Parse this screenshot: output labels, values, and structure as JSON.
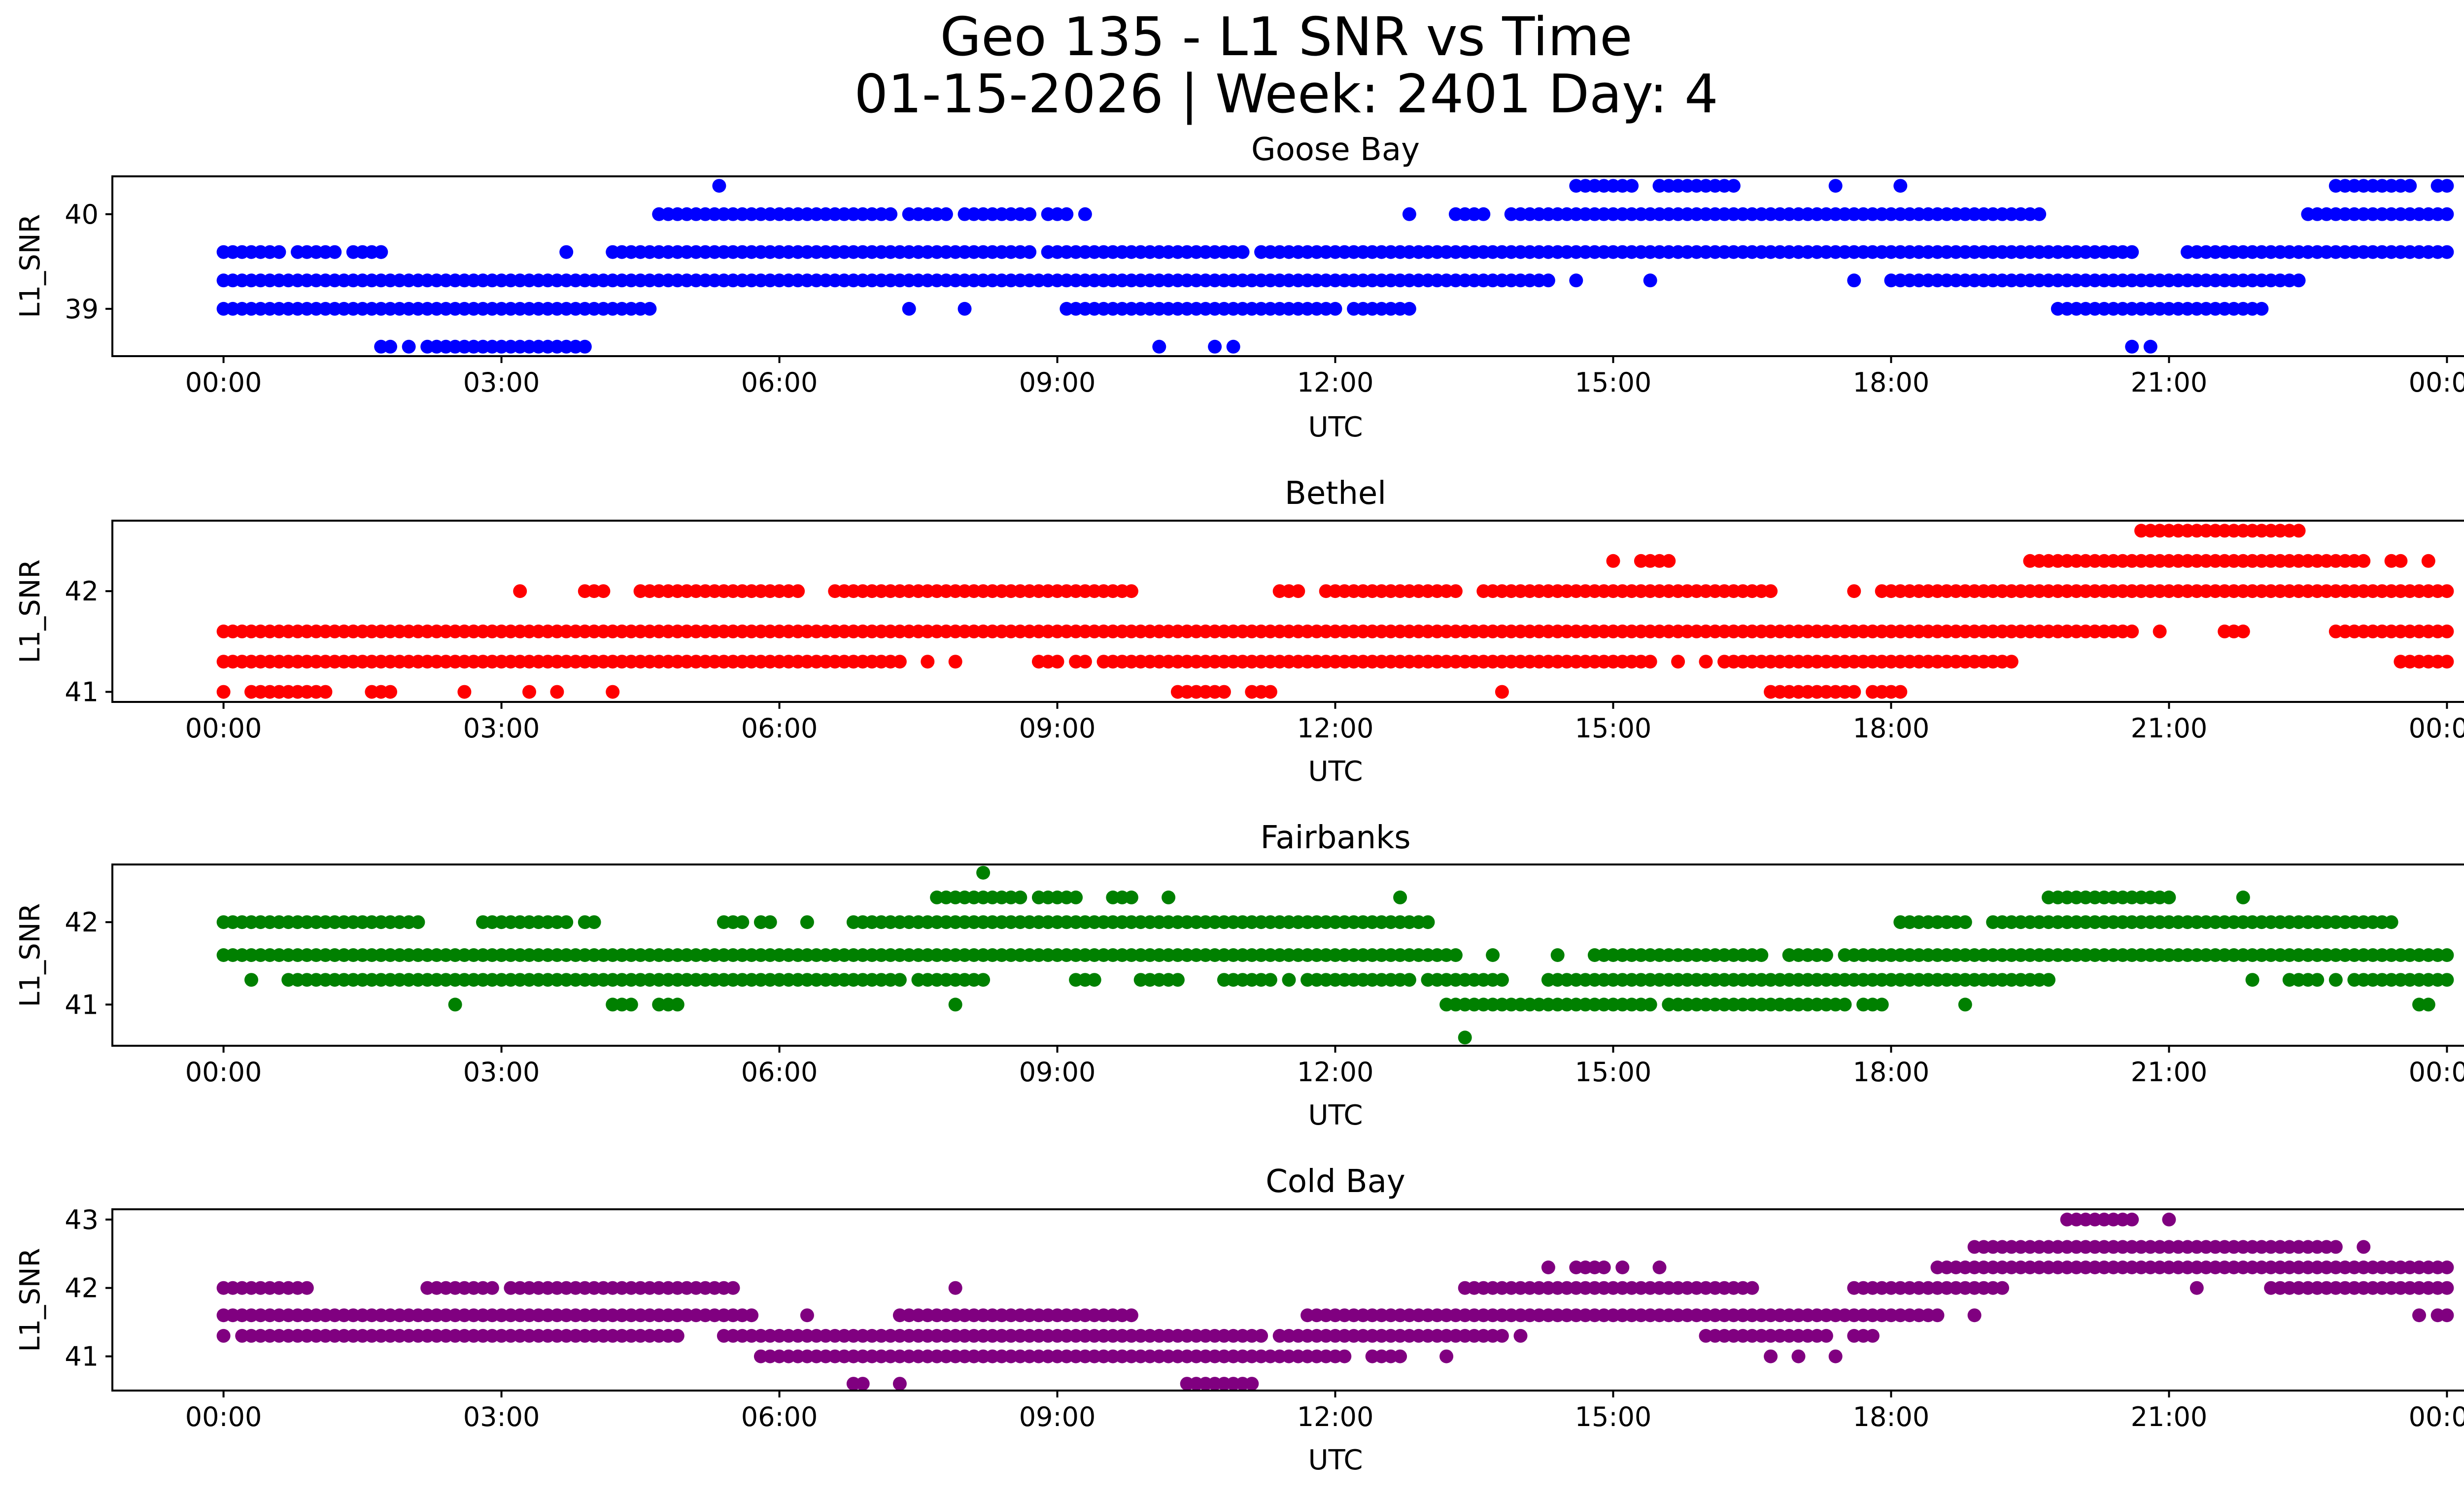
{
  "figure": {
    "title_line1": "Geo 135 - L1 SNR vs Time",
    "title_line2": "01-15-2026 | Week: 2401 Day: 4"
  },
  "chart_data": [
    {
      "type": "scatter",
      "title": "Goose Bay",
      "xlabel": "UTC",
      "ylabel": "L1_SNR",
      "color": "#0000ff",
      "xlim": [
        -1.2,
        25.2
      ],
      "ylim": [
        38.5,
        40.4
      ],
      "xticks": [
        0,
        3,
        6,
        9,
        12,
        15,
        18,
        21,
        24
      ],
      "xtick_labels": [
        "00:00",
        "03:00",
        "06:00",
        "09:00",
        "12:00",
        "15:00",
        "18:00",
        "21:00",
        "00:00"
      ],
      "yticks": [
        39,
        40
      ],
      "ytick_labels": [
        "39",
        "40"
      ],
      "series": [
        {
          "y": 40.3,
          "runs": [
            [
              5.35,
              5.35
            ],
            [
              14.6,
              15.2
            ],
            [
              15.5,
              16.3
            ],
            [
              17.4,
              17.4
            ],
            [
              18.1,
              18.1
            ],
            [
              22.8,
              23.6
            ],
            [
              23.9,
              24
            ]
          ]
        },
        {
          "y": 40.0,
          "runs": [
            [
              4.7,
              7.2
            ],
            [
              7.4,
              7.8
            ],
            [
              8.0,
              8.7
            ],
            [
              8.9,
              9.1
            ],
            [
              9.3,
              9.3
            ],
            [
              12.8,
              12.8
            ],
            [
              13.3,
              13.6
            ],
            [
              13.9,
              19.6
            ],
            [
              22.5,
              24
            ]
          ]
        },
        {
          "y": 39.6,
          "runs": [
            [
              0,
              0.6
            ],
            [
              0.8,
              1.2
            ],
            [
              1.4,
              1.7
            ],
            [
              1.7,
              1.7
            ],
            [
              3.7,
              3.7
            ],
            [
              4.2,
              8.7
            ],
            [
              8.9,
              11.0
            ],
            [
              11.2,
              20.6
            ],
            [
              21.2,
              24
            ]
          ]
        },
        {
          "y": 39.3,
          "runs": [
            [
              0,
              14.3
            ],
            [
              14.6,
              14.6
            ],
            [
              15.4,
              15.4
            ],
            [
              17.6,
              17.6
            ],
            [
              18.0,
              18.5
            ],
            [
              18.6,
              18.9
            ],
            [
              19.0,
              22.4
            ]
          ]
        },
        {
          "y": 39.0,
          "runs": [
            [
              0,
              4.6
            ],
            [
              7.4,
              7.4
            ],
            [
              8.0,
              8.0
            ],
            [
              9.1,
              9.5
            ],
            [
              9.6,
              12.0
            ],
            [
              12.2,
              12.8
            ],
            [
              19.8,
              22.0
            ]
          ]
        },
        {
          "y": 38.6,
          "runs": [
            [
              1.7,
              1.8
            ],
            [
              2.0,
              2.0
            ],
            [
              2.2,
              3.7
            ],
            [
              3.8,
              3.9
            ],
            [
              10.1,
              10.1
            ],
            [
              10.7,
              10.7
            ],
            [
              10.9,
              10.9
            ],
            [
              20.6,
              20.6
            ],
            [
              20.8,
              20.8
            ]
          ]
        }
      ]
    },
    {
      "type": "scatter",
      "title": "Bethel",
      "xlabel": "UTC",
      "ylabel": "L1_SNR",
      "color": "#ff0000",
      "xlim": [
        -1.2,
        25.2
      ],
      "ylim": [
        40.9,
        42.7
      ],
      "xticks": [
        0,
        3,
        6,
        9,
        12,
        15,
        18,
        21,
        24
      ],
      "xtick_labels": [
        "00:00",
        "03:00",
        "06:00",
        "09:00",
        "12:00",
        "15:00",
        "18:00",
        "21:00",
        "00:00"
      ],
      "yticks": [
        41,
        42
      ],
      "ytick_labels": [
        "41",
        "42"
      ],
      "series": [
        {
          "y": 42.6,
          "runs": [
            [
              20.7,
              21.3
            ],
            [
              21.4,
              21.7
            ],
            [
              21.8,
              22.4
            ]
          ]
        },
        {
          "y": 42.3,
          "runs": [
            [
              15.0,
              15.0
            ],
            [
              15.3,
              15.6
            ],
            [
              19.5,
              23.1
            ],
            [
              23.4,
              23.5
            ],
            [
              23.8,
              23.8
            ]
          ]
        },
        {
          "y": 42.0,
          "runs": [
            [
              3.2,
              3.2
            ],
            [
              3.9,
              4.1
            ],
            [
              4.5,
              6.2
            ],
            [
              6.6,
              9.8
            ],
            [
              11.4,
              11.6
            ],
            [
              11.9,
              13.3
            ],
            [
              13.6,
              16.7
            ],
            [
              17.6,
              17.6
            ],
            [
              17.9,
              24
            ]
          ]
        },
        {
          "y": 41.6,
          "runs": [
            [
              0,
              20.6
            ],
            [
              20.9,
              20.9
            ],
            [
              21.6,
              21.8
            ],
            [
              22.8,
              24
            ]
          ]
        },
        {
          "y": 41.3,
          "runs": [
            [
              0,
              4.9
            ],
            [
              5.0,
              7.3
            ],
            [
              7.6,
              7.6
            ],
            [
              7.9,
              7.9
            ],
            [
              8.8,
              9.0
            ],
            [
              9.2,
              9.3
            ],
            [
              9.5,
              15.4
            ],
            [
              15.7,
              15.7
            ],
            [
              16.0,
              16.0
            ],
            [
              16.2,
              19.3
            ],
            [
              23.5,
              24
            ]
          ]
        },
        {
          "y": 41.0,
          "runs": [
            [
              0,
              0
            ],
            [
              0.3,
              1.1
            ],
            [
              1.6,
              1.8
            ],
            [
              2.6,
              2.6
            ],
            [
              3.3,
              3.3
            ],
            [
              3.6,
              3.6
            ],
            [
              4.2,
              4.2
            ],
            [
              10.3,
              10.8
            ],
            [
              11.1,
              11.3
            ],
            [
              13.8,
              13.8
            ],
            [
              16.7,
              17.6
            ],
            [
              17.8,
              18.1
            ]
          ]
        }
      ]
    },
    {
      "type": "scatter",
      "title": "Fairbanks",
      "xlabel": "UTC",
      "ylabel": "L1_SNR",
      "color": "#008000",
      "xlim": [
        -1.2,
        25.2
      ],
      "ylim": [
        40.5,
        42.7
      ],
      "xticks": [
        0,
        3,
        6,
        9,
        12,
        15,
        18,
        21,
        24
      ],
      "xtick_labels": [
        "00:00",
        "03:00",
        "06:00",
        "09:00",
        "12:00",
        "15:00",
        "18:00",
        "21:00",
        "00:00"
      ],
      "yticks": [
        41,
        42
      ],
      "ytick_labels": [
        "41",
        "42"
      ],
      "series": [
        {
          "y": 42.6,
          "runs": [
            [
              8.2,
              8.2
            ]
          ]
        },
        {
          "y": 42.3,
          "runs": [
            [
              7.7,
              8.6
            ],
            [
              8.8,
              9.2
            ],
            [
              9.6,
              9.8
            ],
            [
              10.2,
              10.2
            ],
            [
              12.7,
              12.7
            ],
            [
              19.7,
              21.0
            ],
            [
              21.8,
              21.8
            ]
          ]
        },
        {
          "y": 42.0,
          "runs": [
            [
              0,
              1.1
            ],
            [
              1.2,
              2.1
            ],
            [
              2.8,
              3.7
            ],
            [
              3.9,
              4.0
            ],
            [
              5.4,
              5.6
            ],
            [
              5.8,
              5.9
            ],
            [
              6.3,
              6.3
            ],
            [
              6.8,
              11.7
            ],
            [
              11.8,
              12.1
            ],
            [
              12.2,
              13.0
            ],
            [
              18.1,
              18.8
            ],
            [
              19.1,
              23.4
            ]
          ]
        },
        {
          "y": 41.6,
          "runs": [
            [
              0,
              13.3
            ],
            [
              13.7,
              13.7
            ],
            [
              14.4,
              14.4
            ],
            [
              14.8,
              16.6
            ],
            [
              16.9,
              17.3
            ],
            [
              17.5,
              24
            ]
          ]
        },
        {
          "y": 41.3,
          "runs": [
            [
              0.3,
              0.3
            ],
            [
              0.7,
              3.5
            ],
            [
              3.6,
              7.3
            ],
            [
              7.5,
              8.2
            ],
            [
              9.2,
              9.4
            ],
            [
              9.9,
              10.3
            ],
            [
              10.8,
              11.3
            ],
            [
              11.5,
              11.5
            ],
            [
              11.7,
              12.8
            ],
            [
              13.0,
              13.8
            ],
            [
              14.3,
              19.7
            ],
            [
              21.9,
              21.9
            ],
            [
              22.3,
              22.6
            ],
            [
              22.8,
              22.8
            ],
            [
              23.0,
              24
            ]
          ]
        },
        {
          "y": 41.0,
          "runs": [
            [
              2.5,
              2.5
            ],
            [
              4.2,
              4.4
            ],
            [
              4.7,
              4.9
            ],
            [
              7.9,
              7.9
            ],
            [
              13.2,
              15.4
            ],
            [
              15.6,
              17.5
            ],
            [
              17.7,
              17.9
            ],
            [
              18.8,
              18.8
            ],
            [
              23.7,
              23.8
            ]
          ]
        },
        {
          "y": 40.6,
          "runs": [
            [
              13.4,
              13.4
            ]
          ]
        }
      ]
    },
    {
      "type": "scatter",
      "title": "Cold Bay",
      "xlabel": "UTC",
      "ylabel": "L1_SNR",
      "color": "#800080",
      "xlim": [
        -1.2,
        25.2
      ],
      "ylim": [
        40.5,
        43.15
      ],
      "xticks": [
        0,
        3,
        6,
        9,
        12,
        15,
        18,
        21,
        24
      ],
      "xtick_labels": [
        "00:00",
        "03:00",
        "06:00",
        "09:00",
        "12:00",
        "15:00",
        "18:00",
        "21:00",
        "00:00"
      ],
      "yticks": [
        41,
        42,
        43
      ],
      "ytick_labels": [
        "41",
        "42",
        "43"
      ],
      "series": [
        {
          "y": 43.0,
          "runs": [
            [
              19.9,
              20.6
            ],
            [
              21.0,
              21.0
            ]
          ]
        },
        {
          "y": 42.6,
          "runs": [
            [
              18.9,
              22.8
            ],
            [
              23.1,
              23.1
            ]
          ]
        },
        {
          "y": 42.3,
          "runs": [
            [
              14.3,
              14.3
            ],
            [
              14.6,
              14.9
            ],
            [
              15.1,
              15.1
            ],
            [
              15.5,
              15.5
            ],
            [
              18.5,
              24
            ]
          ]
        },
        {
          "y": 42.0,
          "runs": [
            [
              0,
              0.9
            ],
            [
              2.2,
              2.9
            ],
            [
              3.1,
              3.8
            ],
            [
              3.9,
              4.0
            ],
            [
              4.1,
              4.5
            ],
            [
              4.6,
              5.3
            ],
            [
              5.4,
              5.5
            ],
            [
              7.9,
              7.9
            ],
            [
              13.4,
              16.5
            ],
            [
              17.6,
              19.2
            ],
            [
              21.3,
              21.3
            ],
            [
              22.1,
              24
            ]
          ]
        },
        {
          "y": 41.6,
          "runs": [
            [
              0,
              5.7
            ],
            [
              6.3,
              6.3
            ],
            [
              7.3,
              9.0
            ],
            [
              9.1,
              9.8
            ],
            [
              11.7,
              18.5
            ],
            [
              18.9,
              18.9
            ],
            [
              23.7,
              23.7
            ],
            [
              23.9,
              24
            ]
          ]
        },
        {
          "y": 41.3,
          "runs": [
            [
              0,
              0
            ],
            [
              0.2,
              4.8
            ],
            [
              4.9,
              4.9
            ],
            [
              5.4,
              11.2
            ],
            [
              11.4,
              13.8
            ],
            [
              14.0,
              14.0
            ],
            [
              16.0,
              17.3
            ],
            [
              17.6,
              17.8
            ]
          ]
        },
        {
          "y": 41.0,
          "runs": [
            [
              5.8,
              12.1
            ],
            [
              12.4,
              12.7
            ],
            [
              13.2,
              13.2
            ],
            [
              16.7,
              16.7
            ],
            [
              17.0,
              17.0
            ],
            [
              17.4,
              17.4
            ]
          ]
        },
        {
          "y": 40.6,
          "runs": [
            [
              6.8,
              6.9
            ],
            [
              7.3,
              7.3
            ],
            [
              10.4,
              11.1
            ]
          ]
        }
      ]
    }
  ]
}
